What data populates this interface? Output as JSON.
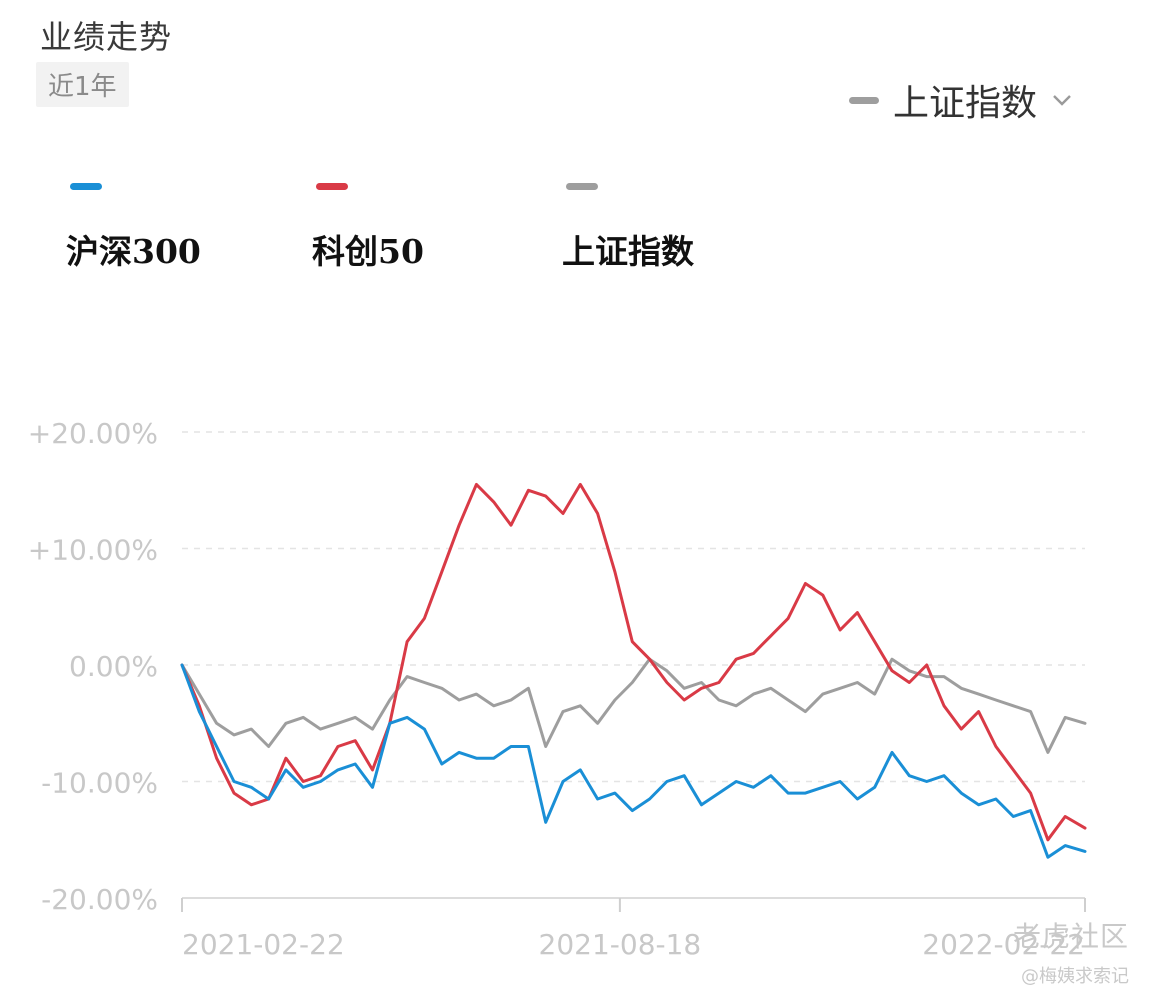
{
  "header": {
    "title": "业绩走势",
    "period_tab": "近1年",
    "compare_select": {
      "selected": "上证指数",
      "icon": "chevron-down-icon"
    }
  },
  "colors": {
    "hs300": "#1a8fd6",
    "kc50": "#d93a46",
    "sse": "#9e9e9e",
    "grid": "#e4e4e4",
    "tick": "#c8c8c8"
  },
  "watermark": {
    "main": "老虎社区",
    "sub": "@梅姨求索记"
  },
  "chart_data": {
    "type": "line",
    "x_tick_labels": [
      "2021-02-22",
      "2021-08-18",
      "2022-02-22"
    ],
    "x_range": [
      "2021-02-22",
      "2022-02-22"
    ],
    "y_tick_labels": [
      "+20.00%",
      "+10.00%",
      "0.00%",
      "-10.00%",
      "-20.00%"
    ],
    "ylim": [
      -20,
      20
    ],
    "grid": true,
    "legend_position": "top",
    "x": [
      "2021-02-22",
      "2021-03-01",
      "2021-03-08",
      "2021-03-15",
      "2021-03-22",
      "2021-03-29",
      "2021-04-05",
      "2021-04-12",
      "2021-04-19",
      "2021-04-26",
      "2021-05-03",
      "2021-05-10",
      "2021-05-17",
      "2021-05-24",
      "2021-05-31",
      "2021-06-07",
      "2021-06-14",
      "2021-06-21",
      "2021-06-28",
      "2021-07-05",
      "2021-07-12",
      "2021-07-19",
      "2021-07-26",
      "2021-08-02",
      "2021-08-09",
      "2021-08-16",
      "2021-08-23",
      "2021-08-30",
      "2021-09-06",
      "2021-09-13",
      "2021-09-20",
      "2021-09-27",
      "2021-10-04",
      "2021-10-11",
      "2021-10-18",
      "2021-10-25",
      "2021-11-01",
      "2021-11-08",
      "2021-11-15",
      "2021-11-22",
      "2021-11-29",
      "2021-12-06",
      "2021-12-13",
      "2021-12-20",
      "2021-12-27",
      "2022-01-03",
      "2022-01-10",
      "2022-01-17",
      "2022-01-24",
      "2022-01-31",
      "2022-02-07",
      "2022-02-14",
      "2022-02-22"
    ],
    "series": [
      {
        "name": "沪深300",
        "color": "#1a8fd6",
        "values": [
          0,
          -4.0,
          -7.0,
          -10.0,
          -10.5,
          -11.5,
          -9.0,
          -10.5,
          -10.0,
          -9.0,
          -8.5,
          -10.5,
          -5.0,
          -4.5,
          -5.5,
          -8.5,
          -7.5,
          -8.0,
          -8.0,
          -7.0,
          -7.0,
          -13.5,
          -10.0,
          -9.0,
          -11.5,
          -11.0,
          -12.5,
          -11.5,
          -10.0,
          -9.5,
          -12.0,
          -11.0,
          -10.0,
          -10.5,
          -9.5,
          -11.0,
          -11.0,
          -10.5,
          -10.0,
          -11.5,
          -10.5,
          -7.5,
          -9.5,
          -10.0,
          -9.5,
          -11.0,
          -12.0,
          -11.5,
          -13.0,
          -12.5,
          -16.5,
          -15.5,
          -16.0
        ]
      },
      {
        "name": "科创50",
        "color": "#d93a46",
        "values": [
          0,
          -3.5,
          -8.0,
          -11.0,
          -12.0,
          -11.5,
          -8.0,
          -10.0,
          -9.5,
          -7.0,
          -6.5,
          -9.0,
          -5.0,
          2.0,
          4.0,
          8.0,
          12.0,
          15.5,
          14.0,
          12.0,
          15.0,
          14.5,
          13.0,
          15.5,
          13.0,
          8.0,
          2.0,
          0.5,
          -1.5,
          -3.0,
          -2.0,
          -1.5,
          0.5,
          1.0,
          2.5,
          4.0,
          7.0,
          6.0,
          3.0,
          4.5,
          2.0,
          -0.5,
          -1.5,
          0.0,
          -3.5,
          -5.5,
          -4.0,
          -7.0,
          -9.0,
          -11.0,
          -15.0,
          -13.0,
          -14.0
        ]
      },
      {
        "name": "上证指数",
        "color": "#9e9e9e",
        "values": [
          0,
          -2.5,
          -5.0,
          -6.0,
          -5.5,
          -7.0,
          -5.0,
          -4.5,
          -5.5,
          -5.0,
          -4.5,
          -5.5,
          -3.0,
          -1.0,
          -1.5,
          -2.0,
          -3.0,
          -2.5,
          -3.5,
          -3.0,
          -2.0,
          -7.0,
          -4.0,
          -3.5,
          -5.0,
          -3.0,
          -1.5,
          0.5,
          -0.5,
          -2.0,
          -1.5,
          -3.0,
          -3.5,
          -2.5,
          -2.0,
          -3.0,
          -4.0,
          -2.5,
          -2.0,
          -1.5,
          -2.5,
          0.5,
          -0.5,
          -1.0,
          -1.0,
          -2.0,
          -2.5,
          -3.0,
          -3.5,
          -4.0,
          -7.5,
          -4.5,
          -5.0
        ]
      }
    ]
  }
}
